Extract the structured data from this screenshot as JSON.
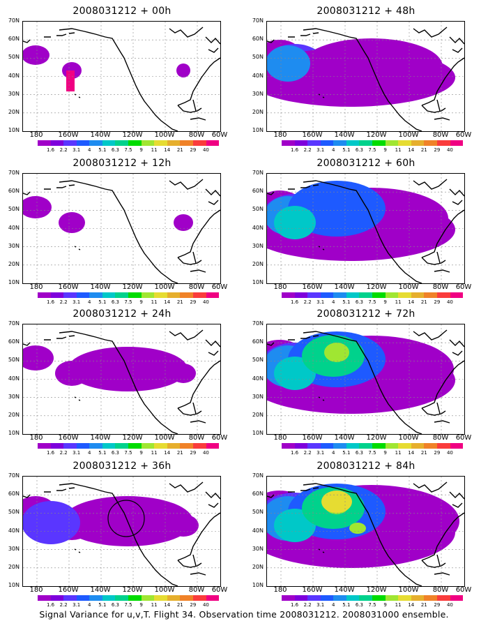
{
  "caption": "Signal Variance for u,v,T. Flight 34. Observation time 2008031212. 2008031000 ensemble.",
  "lat_labels": [
    "70N",
    "60N",
    "50N",
    "40N",
    "30N",
    "20N",
    "10N"
  ],
  "lon_labels": [
    "180",
    "160W",
    "140W",
    "120W",
    "100W",
    "80W",
    "60W"
  ],
  "colorbar": {
    "labels": [
      "1.6",
      "2.2",
      "3.1",
      "4",
      "5.1",
      "6.3",
      "7.5",
      "9",
      "11",
      "14",
      "21",
      "29",
      "40"
    ],
    "colors": [
      "#a000c8",
      "#7e00dc",
      "#5a36ff",
      "#1e5aff",
      "#1e8cf0",
      "#00c8c8",
      "#00d28c",
      "#00dc00",
      "#a0e632",
      "#e6dc32",
      "#e6af2d",
      "#f08228",
      "#fa3c3c",
      "#f00082"
    ]
  },
  "panels": [
    {
      "title": "2008031212 + 00h",
      "level": 0
    },
    {
      "title": "2008031212 + 48h",
      "level": 4
    },
    {
      "title": "2008031212 + 12h",
      "level": 1
    },
    {
      "title": "2008031212 + 60h",
      "level": 5
    },
    {
      "title": "2008031212 + 24h",
      "level": 2
    },
    {
      "title": "2008031212 + 72h",
      "level": 6
    },
    {
      "title": "2008031212 + 36h",
      "level": 3
    },
    {
      "title": "2008031212 + 84h",
      "level": 7
    }
  ]
}
